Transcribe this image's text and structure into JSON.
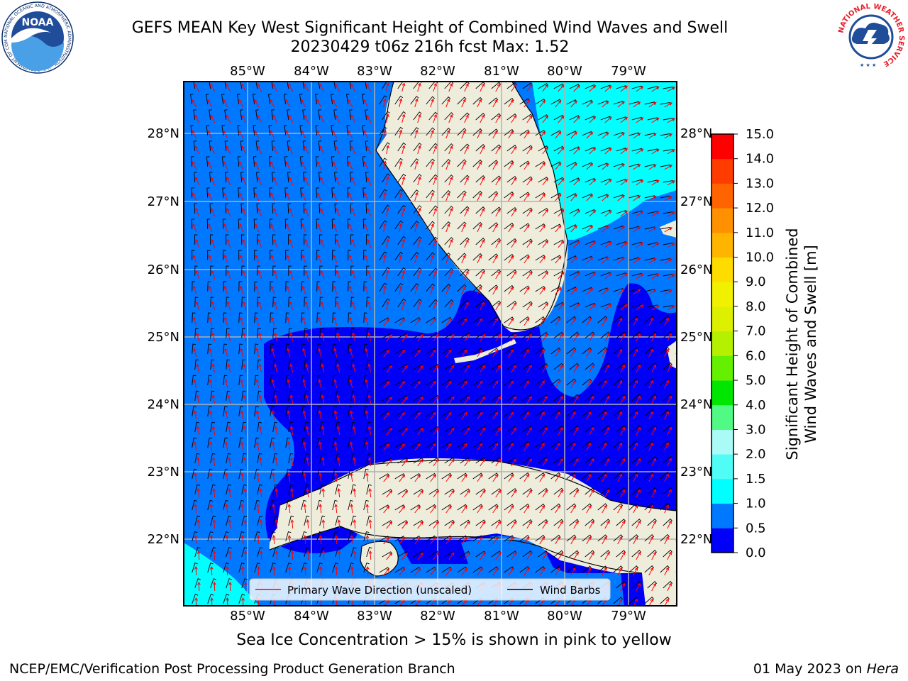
{
  "title": {
    "line1": "GEFS MEAN Key West Significant Height of Combined Wind Waves and Swell",
    "line2": "20230429 t06z 216h fcst   Max: 1.52"
  },
  "logos": {
    "noaa_text": "NOAA",
    "noaa_ring": "NATIONAL OCEANIC AND ATMOSPHERIC ADMINISTRATION · U.S. DEPARTMENT OF COMMERCE",
    "nws_ring": "NATIONAL WEATHER SERVICE"
  },
  "map": {
    "lon_labels": [
      "85°W",
      "84°W",
      "83°W",
      "82°W",
      "81°W",
      "80°W",
      "79°W"
    ],
    "lat_labels": [
      "28°N",
      "27°N",
      "26°N",
      "25°N",
      "24°N",
      "23°N",
      "22°N"
    ],
    "legend": {
      "wave_label": "Primary Wave Direction (unscaled)",
      "wind_label": "Wind Barbs",
      "wave_color": "#ff0000",
      "wind_color": "#000000"
    },
    "colors": {
      "land": "#eeeddc",
      "band_0_05": "#0000f8",
      "band_05_10": "#0078ff",
      "band_10_15": "#00ffff"
    }
  },
  "colorbar": {
    "label_line1": "Significant Height of Combined",
    "label_line2": "Wind Waves and Swell [m]",
    "ticks": [
      "15.0",
      "14.0",
      "13.0",
      "12.0",
      "11.0",
      "10.0",
      "9.0",
      "8.0",
      "7.0",
      "6.0",
      "5.0",
      "4.0",
      "3.0",
      "2.0",
      "1.5",
      "1.0",
      "0.5",
      "0.0"
    ],
    "colors": [
      "#0000f8",
      "#0078ff",
      "#00ffff",
      "#50fcf6",
      "#aafaf6",
      "#50fa84",
      "#00e600",
      "#64f000",
      "#b4f000",
      "#dcf000",
      "#f0f000",
      "#ffdc00",
      "#ffb400",
      "#ff9000",
      "#ff6400",
      "#ff3c00",
      "#ff0000"
    ]
  },
  "footer": {
    "ice_note": "Sea Ice Concentration > 15% is shown in pink to yellow",
    "left": "NCEP/EMC/Verification Post Processing Product Generation Branch",
    "right_date": "01 May 2023 on",
    "right_machine": "Hera"
  }
}
